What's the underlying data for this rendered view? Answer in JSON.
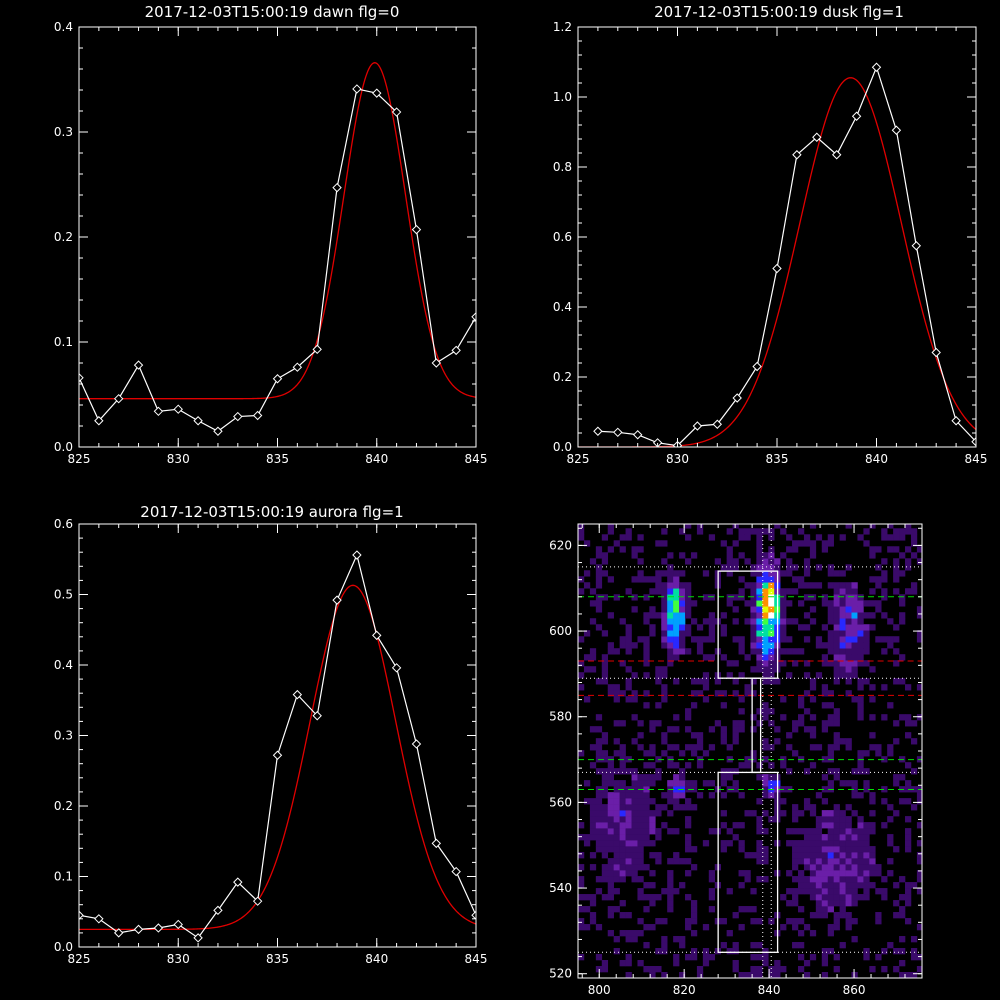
{
  "colors": {
    "background": "#000000",
    "axes": "#ffffff",
    "data_line": "#ffffff",
    "fit_line": "#e00000",
    "green_dashed": "#00e000",
    "red_dashed": "#e00000"
  },
  "chart_data": [
    {
      "type": "line",
      "title": "2017-12-03T15:00:19 dawn flg=0",
      "xlim": [
        825,
        845
      ],
      "ylim": [
        0,
        0.4
      ],
      "xticks": [
        "825",
        "830",
        "835",
        "840",
        "845"
      ],
      "yticks": [
        "0.0",
        "0.1",
        "0.2",
        "0.3",
        "0.4"
      ],
      "series": [
        {
          "kind": "data",
          "marker": "diamond",
          "color": "#ffffff",
          "x": [
            825,
            826,
            827,
            828,
            829,
            830,
            831,
            832,
            833,
            834,
            835,
            836,
            837,
            838,
            839,
            840,
            841,
            842,
            843,
            844,
            845
          ],
          "y": [
            0.066,
            0.025,
            0.046,
            0.078,
            0.034,
            0.036,
            0.025,
            0.015,
            0.029,
            0.03,
            0.065,
            0.076,
            0.093,
            0.247,
            0.341,
            0.337,
            0.319,
            0.207,
            0.08,
            0.092,
            0.124
          ]
        },
        {
          "kind": "gaussian_fit",
          "color": "#e00000",
          "center": 839.9,
          "sigma": 1.55,
          "amplitude": 0.32,
          "baseline": 0.046
        }
      ]
    },
    {
      "type": "line",
      "title": "2017-12-03T15:00:19 dusk flg=1",
      "xlim": [
        825,
        845
      ],
      "ylim": [
        0,
        1.2
      ],
      "xticks": [
        "825",
        "830",
        "835",
        "840",
        "845"
      ],
      "yticks": [
        "0.0",
        "0.2",
        "0.4",
        "0.6",
        "0.8",
        "1.0",
        "1.2"
      ],
      "series": [
        {
          "kind": "data",
          "marker": "diamond",
          "color": "#ffffff",
          "x": [
            826,
            827,
            828,
            829,
            830,
            831,
            832,
            833,
            834,
            835,
            836,
            837,
            838,
            839,
            840,
            841,
            842,
            843,
            844,
            845
          ],
          "y": [
            0.045,
            0.042,
            0.035,
            0.012,
            0.004,
            0.06,
            0.065,
            0.14,
            0.23,
            0.51,
            0.835,
            0.885,
            0.835,
            0.945,
            1.085,
            0.905,
            0.575,
            0.27,
            0.075,
            0.015
          ]
        },
        {
          "kind": "gaussian_fit",
          "color": "#e00000",
          "center": 838.7,
          "sigma": 2.55,
          "amplitude": 1.055,
          "baseline": 0.0
        }
      ]
    },
    {
      "type": "line",
      "title": "2017-12-03T15:00:19 aurora flg=1",
      "xlim": [
        825,
        845
      ],
      "ylim": [
        0,
        0.6
      ],
      "xticks": [
        "825",
        "830",
        "835",
        "840",
        "845"
      ],
      "yticks": [
        "0.0",
        "0.1",
        "0.2",
        "0.3",
        "0.4",
        "0.5",
        "0.6"
      ],
      "series": [
        {
          "kind": "data",
          "marker": "diamond",
          "color": "#ffffff",
          "x": [
            825,
            826,
            827,
            828,
            829,
            830,
            831,
            832,
            833,
            834,
            835,
            836,
            837,
            838,
            839,
            840,
            841,
            842,
            843,
            844,
            845
          ],
          "y": [
            0.045,
            0.04,
            0.02,
            0.025,
            0.027,
            0.032,
            0.013,
            0.052,
            0.092,
            0.065,
            0.272,
            0.358,
            0.328,
            0.492,
            0.556,
            0.442,
            0.396,
            0.288,
            0.147,
            0.107,
            0.045
          ]
        },
        {
          "kind": "gaussian_fit",
          "color": "#e00000",
          "center": 838.8,
          "sigma": 2.15,
          "amplitude": 0.488,
          "baseline": 0.025
        }
      ]
    },
    {
      "type": "heatmap",
      "title": "",
      "xlim": [
        795,
        876
      ],
      "ylim": [
        519,
        625
      ],
      "xticks": [
        "800",
        "820",
        "840",
        "860"
      ],
      "yticks": [
        "520",
        "540",
        "560",
        "580",
        "600",
        "620"
      ],
      "colormap": [
        "#000000",
        "#3a0a6a",
        "#6a1ea8",
        "#2828ff",
        "#00a0ff",
        "#00e0a0",
        "#40ff40",
        "#e0ff00",
        "#ff9000",
        "#ff0000",
        "#ffffff"
      ],
      "pixel_size": 1.4,
      "sources": [
        {
          "x": 817,
          "y": 603,
          "sx": 1.4,
          "sy": 5.5,
          "amp": 0.55
        },
        {
          "x": 839,
          "y": 604,
          "sx": 1.8,
          "sy": 6.5,
          "amp": 0.75
        },
        {
          "x": 840,
          "y": 606,
          "sx": 0.9,
          "sy": 2.2,
          "amp": 0.45
        },
        {
          "x": 818,
          "y": 563,
          "sx": 1.2,
          "sy": 1.8,
          "amp": 0.35
        },
        {
          "x": 840,
          "y": 563,
          "sx": 1.0,
          "sy": 1.6,
          "amp": 0.4
        },
        {
          "x": 858,
          "y": 600,
          "sx": 2.5,
          "sy": 7.0,
          "amp": 0.25
        },
        {
          "x": 855,
          "y": 545,
          "sx": 6.0,
          "sy": 8.0,
          "amp": 0.15
        },
        {
          "x": 805,
          "y": 555,
          "sx": 5.0,
          "sy": 10.0,
          "amp": 0.12
        }
      ],
      "background_level": 0.18,
      "boxes": [
        {
          "x0": 828,
          "x1": 842,
          "y0": 589,
          "y1": 614
        },
        {
          "x0": 828,
          "x1": 842,
          "y0": 525,
          "y1": 567
        },
        {
          "x0": 836,
          "x1": 838,
          "y0": 567,
          "y1": 589
        }
      ],
      "dotted_white_y": [
        615,
        589,
        567,
        525
      ],
      "dotted_white_x": [
        838.5,
        840.5
      ],
      "dashed_green_y": [
        608,
        570,
        563
      ],
      "dashed_red_y": [
        585
      ],
      "dashed_red_x_segments": [
        {
          "y": 593,
          "x0": 795,
          "x1": 828
        },
        {
          "y": 593,
          "x0": 842,
          "x1": 876
        }
      ]
    }
  ]
}
